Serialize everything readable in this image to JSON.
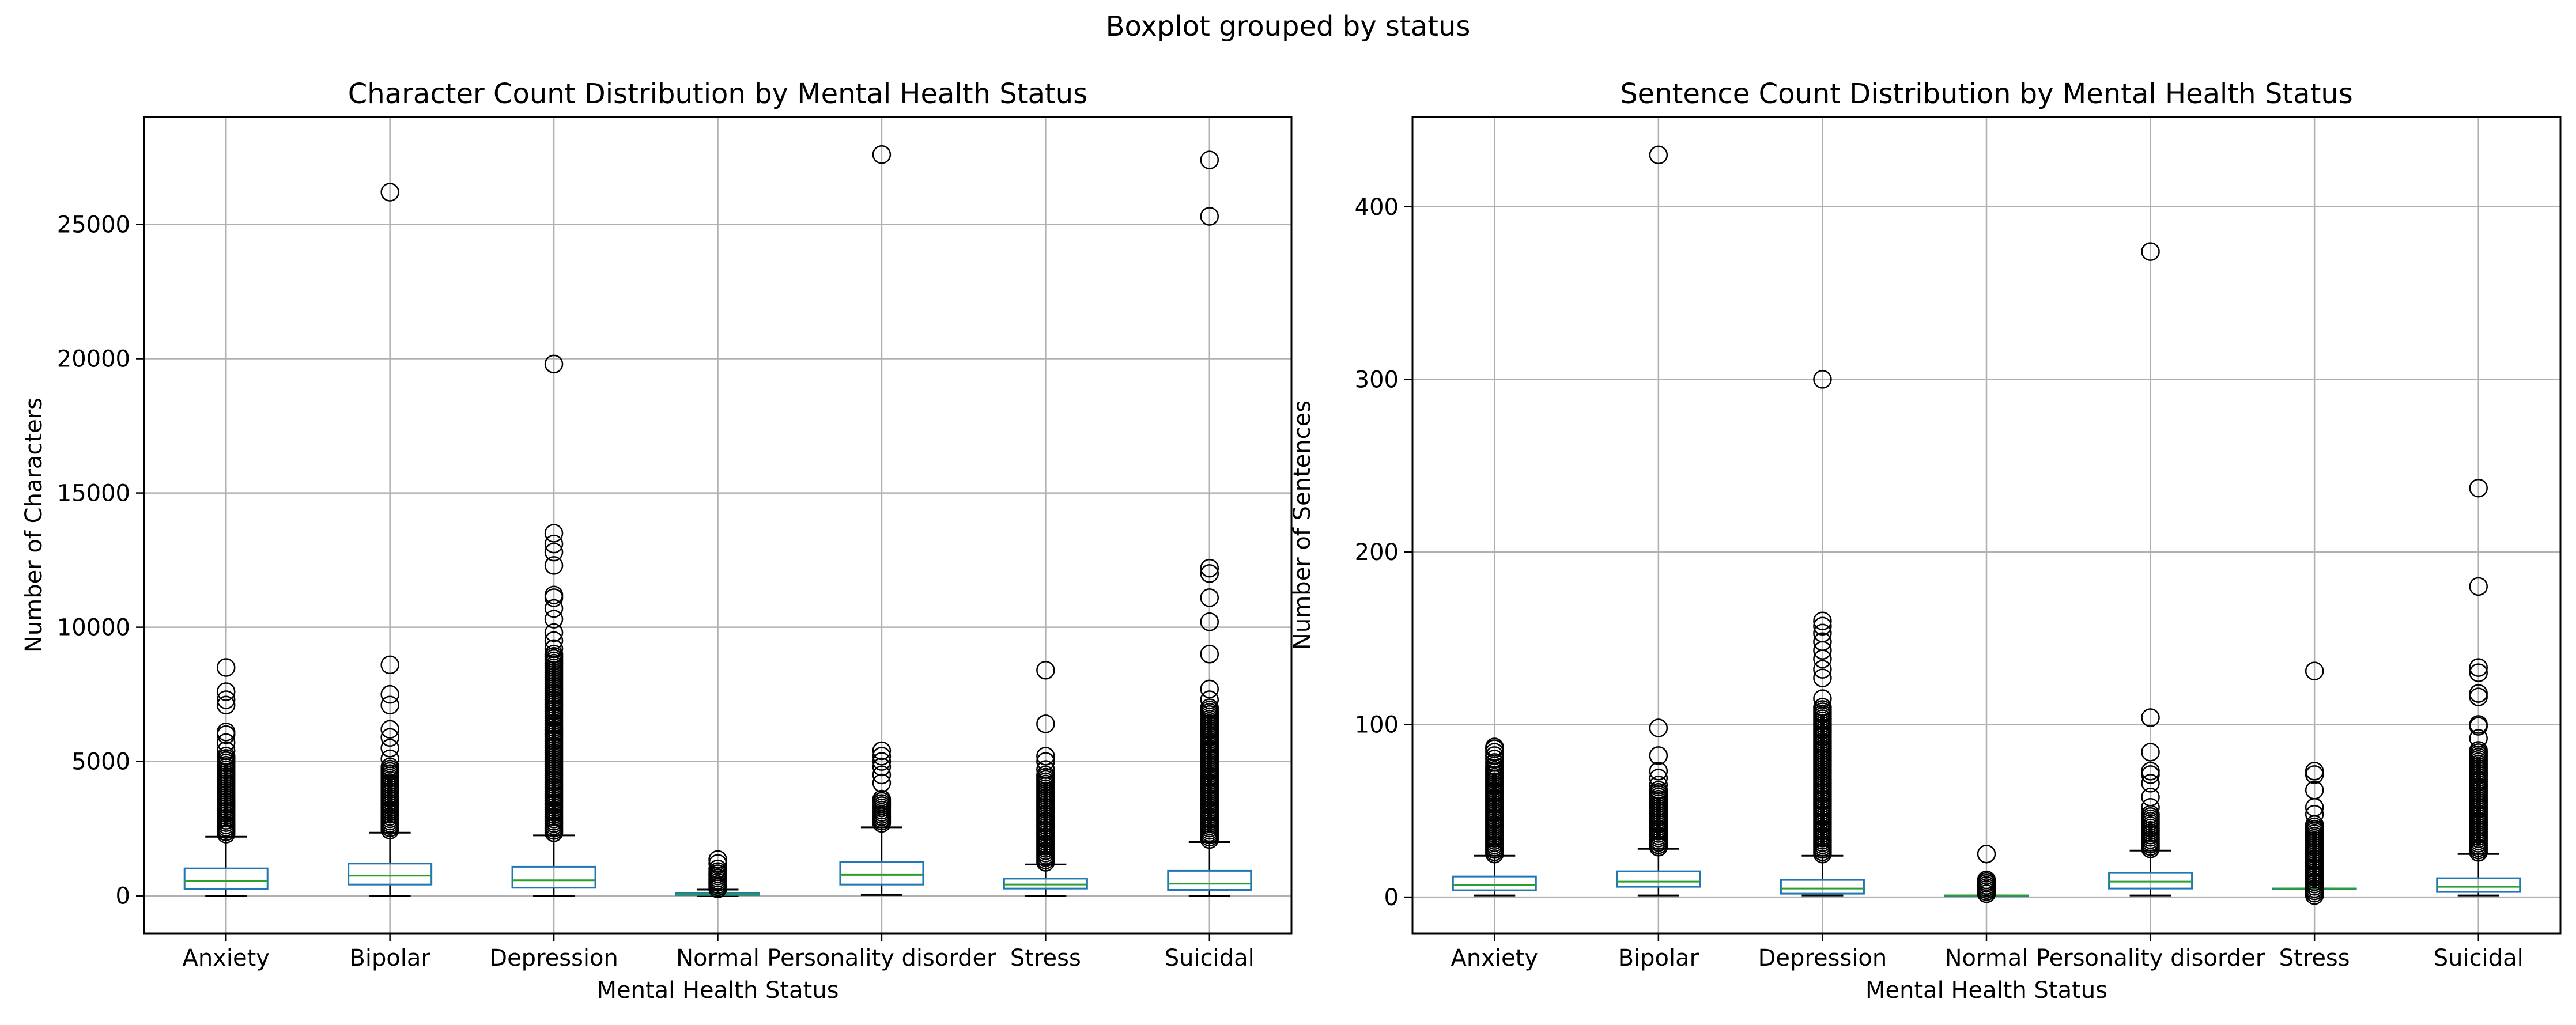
{
  "suptitle": "Boxplot grouped by status",
  "chart_data": [
    {
      "type": "box",
      "title": "Character Count Distribution by Mental Health Status",
      "xlabel": "Mental Health Status",
      "ylabel": "Number of Characters",
      "ylim": [
        -1400,
        29000
      ],
      "yticks": [
        0,
        5000,
        10000,
        15000,
        20000,
        25000
      ],
      "grid": true,
      "categories": [
        "Anxiety",
        "Bipolar",
        "Depression",
        "Normal",
        "Personality disorder",
        "Stress",
        "Suicidal"
      ],
      "boxes": [
        {
          "whislo": 0,
          "q1": 260,
          "med": 560,
          "q3": 1020,
          "whishi": 2200,
          "fliers_dense": [
            2300,
            5200
          ],
          "fliers": [
            5400,
            5700,
            6000,
            6100,
            7100,
            7300,
            7600,
            8500
          ]
        },
        {
          "whislo": 0,
          "q1": 420,
          "med": 750,
          "q3": 1200,
          "whishi": 2350,
          "fliers_dense": [
            2450,
            4800
          ],
          "fliers": [
            5100,
            5500,
            5900,
            6200,
            7100,
            7500,
            8600,
            26200
          ]
        },
        {
          "whislo": 0,
          "q1": 300,
          "med": 580,
          "q3": 1080,
          "whishi": 2250,
          "fliers_dense": [
            2350,
            9000
          ],
          "fliers": [
            9200,
            9500,
            9800,
            10300,
            10700,
            11100,
            11200,
            12300,
            12800,
            13100,
            13500,
            19800
          ]
        },
        {
          "whislo": 0,
          "q1": 30,
          "med": 60,
          "q3": 110,
          "whishi": 230,
          "fliers_dense": [
            260,
            900
          ],
          "fliers": [
            1000,
            1200,
            1350
          ]
        },
        {
          "whislo": 30,
          "q1": 420,
          "med": 780,
          "q3": 1270,
          "whishi": 2550,
          "fliers_dense": [
            2700,
            3600
          ],
          "fliers": [
            4200,
            4500,
            4800,
            5000,
            5200,
            5400,
            27600
          ]
        },
        {
          "whislo": 0,
          "q1": 270,
          "med": 420,
          "q3": 640,
          "whishi": 1170,
          "fliers_dense": [
            1250,
            4500
          ],
          "fliers": [
            4700,
            5000,
            5200,
            6400,
            8400
          ]
        },
        {
          "whislo": 0,
          "q1": 220,
          "med": 450,
          "q3": 930,
          "whishi": 2000,
          "fliers_dense": [
            2100,
            7000
          ],
          "fliers": [
            7300,
            7700,
            9000,
            10200,
            11100,
            12000,
            12200,
            25300,
            27400
          ]
        }
      ]
    },
    {
      "type": "box",
      "title": "Sentence Count Distribution by Mental Health Status",
      "xlabel": "Mental Health Status",
      "ylabel": "Number of Sentences",
      "ylim": [
        -21,
        452
      ],
      "yticks": [
        0,
        100,
        200,
        300,
        400
      ],
      "grid": true,
      "categories": [
        "Anxiety",
        "Bipolar",
        "Depression",
        "Normal",
        "Personality disorder",
        "Stress",
        "Suicidal"
      ],
      "boxes": [
        {
          "whislo": 1,
          "q1": 4,
          "med": 7,
          "q3": 12,
          "whishi": 24,
          "fliers_dense": [
            25,
            76
          ],
          "fliers": [
            78,
            80,
            82,
            84,
            86,
            87
          ]
        },
        {
          "whislo": 1,
          "q1": 6,
          "med": 9,
          "q3": 15,
          "whishi": 28,
          "fliers_dense": [
            29,
            62
          ],
          "fliers": [
            65,
            69,
            73,
            82,
            98,
            430
          ]
        },
        {
          "whislo": 1,
          "q1": 2,
          "med": 5,
          "q3": 10,
          "whishi": 24,
          "fliers_dense": [
            25,
            110
          ],
          "fliers": [
            115,
            127,
            132,
            138,
            143,
            148,
            153,
            157,
            160,
            300
          ]
        },
        {
          "whislo": 1,
          "q1": 1,
          "med": 1,
          "q3": 1,
          "whishi": 1,
          "fliers_dense": [
            2,
            8
          ],
          "fliers": [
            9,
            10,
            25
          ]
        },
        {
          "whislo": 1,
          "q1": 5,
          "med": 9,
          "q3": 14,
          "whishi": 27,
          "fliers_dense": [
            28,
            48
          ],
          "fliers": [
            52,
            58,
            66,
            71,
            73,
            84,
            104,
            374
          ]
        },
        {
          "whislo": 5,
          "q1": 5,
          "med": 5,
          "q3": 5,
          "whishi": 5,
          "fliers_dense": [
            1,
            42
          ],
          "fliers": [
            48,
            52,
            62,
            71,
            73,
            131
          ]
        },
        {
          "whislo": 1,
          "q1": 3,
          "med": 6,
          "q3": 11,
          "whishi": 25,
          "fliers_dense": [
            26,
            85
          ],
          "fliers": [
            92,
            99,
            100,
            116,
            118,
            130,
            133,
            180,
            237
          ]
        }
      ]
    }
  ],
  "colors": {
    "box": "#1f77b4",
    "median": "#2ca02c",
    "whisker": "#000000",
    "grid": "#b0b0b0",
    "flier": "#000000"
  }
}
